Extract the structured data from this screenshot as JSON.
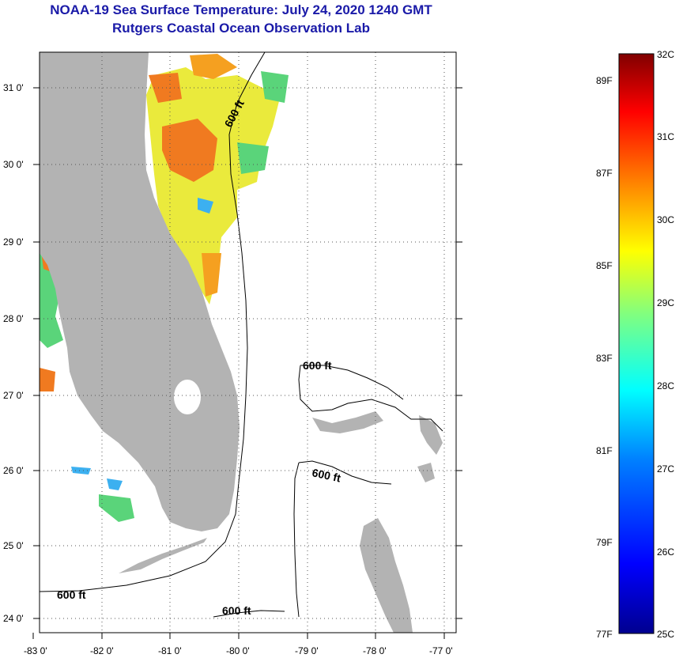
{
  "header": {
    "title": "NOAA-19 Sea Surface Temperature:  July 24, 2020 1240 GMT",
    "subtitle": "Rutgers Coastal Ocean Observation Lab"
  },
  "map": {
    "lon_labels": [
      "-83 0'",
      "-82 0'",
      "-81 0'",
      "-80 0'",
      "-79 0'",
      "-78 0'",
      "-77 0'"
    ],
    "lat_labels": [
      "31 0'",
      "30 0'",
      "29 0'",
      "28 0'",
      "27 0'",
      "26 0'",
      "25 0'",
      "24 0'"
    ],
    "contour_labels": [
      "600 ft",
      "600 ft",
      "600 ft",
      "600 ft",
      "600 ft"
    ],
    "colors": {
      "land": "#b3b3b3",
      "ocean": "#ffffff",
      "grid": "#555555"
    }
  },
  "colorbar": {
    "celsius_labels": [
      "32C",
      "31C",
      "30C",
      "29C",
      "28C",
      "27C",
      "26C",
      "25C"
    ],
    "fahrenheit_labels": [
      "89F",
      "87F",
      "85F",
      "83F",
      "81F",
      "79F",
      "77F"
    ],
    "range_c": [
      25,
      32
    ],
    "colors": [
      "#00008f",
      "#0000ff",
      "#0080ff",
      "#00ffff",
      "#80ff80",
      "#ffff00",
      "#ff8000",
      "#ff0000",
      "#800000"
    ]
  }
}
